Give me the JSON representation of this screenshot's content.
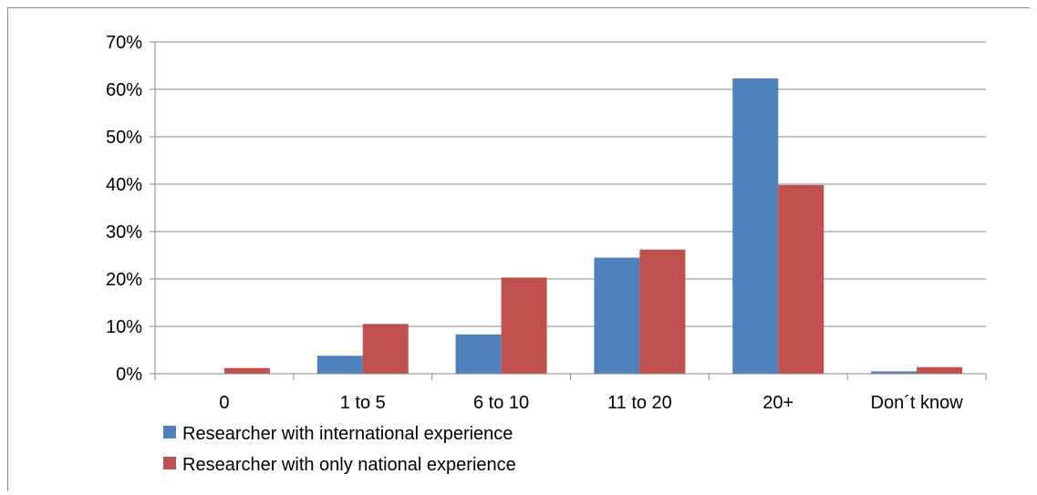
{
  "chart_data": {
    "type": "bar",
    "categories": [
      "0",
      "1 to 5",
      "6 to 10",
      "11 to 20",
      "20+",
      "Don´t know"
    ],
    "series": [
      {
        "name": "Researcher with international experience",
        "color": "#4F81BD",
        "values": [
          0.0,
          3.8,
          8.3,
          24.5,
          62.3,
          0.5
        ]
      },
      {
        "name": "Researcher with only national experience",
        "color": "#C0504D",
        "values": [
          1.2,
          10.5,
          20.3,
          26.2,
          39.8,
          1.4
        ]
      }
    ],
    "ylim": [
      0,
      70
    ],
    "yticks": [
      0,
      10,
      20,
      30,
      40,
      50,
      60,
      70
    ],
    "ytick_labels": [
      "0%",
      "10%",
      "20%",
      "30%",
      "40%",
      "50%",
      "60%",
      "70%"
    ],
    "grid": "horizontal",
    "legend_position": "bottom-left",
    "title": "",
    "xlabel": "",
    "ylabel": ""
  }
}
